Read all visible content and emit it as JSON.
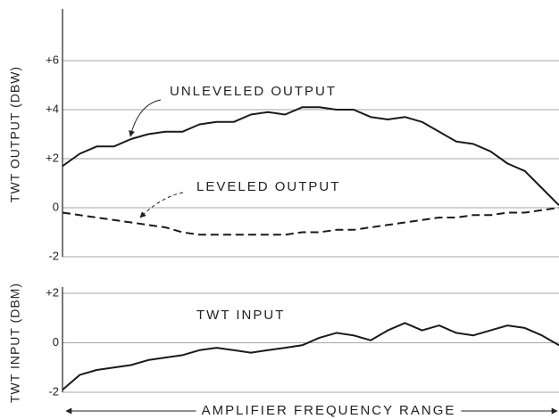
{
  "chart_data": [
    {
      "type": "line",
      "ylabel": "TWT OUTPUT (DBW)",
      "categories": [
        null,
        null,
        null,
        null,
        null,
        null,
        null,
        null,
        null,
        null,
        null,
        null,
        null,
        null,
        null,
        null,
        null,
        null,
        null,
        null,
        null,
        null,
        null,
        null,
        null,
        null,
        null,
        null,
        null,
        null
      ],
      "series": [
        {
          "name": "UNLEVELED OUTPUT",
          "color": "#1a1a1a",
          "line_style": "solid",
          "values": [
            1.7,
            2.2,
            2.5,
            2.5,
            2.8,
            3.0,
            3.1,
            3.1,
            3.4,
            3.5,
            3.5,
            3.8,
            3.9,
            3.8,
            4.1,
            4.1,
            4.0,
            4.0,
            3.7,
            3.6,
            3.7,
            3.5,
            3.1,
            2.7,
            2.6,
            2.3,
            1.8,
            1.5,
            0.8,
            0.1
          ]
        },
        {
          "name": "LEVELED OUTPUT",
          "color": "#1a1a1a",
          "line_style": "dashed",
          "values": [
            -0.2,
            -0.3,
            -0.4,
            -0.5,
            -0.6,
            -0.7,
            -0.8,
            -1.0,
            -1.1,
            -1.1,
            -1.1,
            -1.1,
            -1.1,
            -1.1,
            -1.0,
            -1.0,
            -0.9,
            -0.9,
            -0.8,
            -0.7,
            -0.6,
            -0.5,
            -0.4,
            -0.4,
            -0.3,
            -0.3,
            -0.2,
            -0.2,
            -0.1,
            0.0
          ]
        }
      ],
      "ylim": [
        -2,
        8
      ],
      "yticks": [
        {
          "value": 6,
          "label": "+6"
        },
        {
          "value": 4,
          "label": "+4"
        },
        {
          "value": 2,
          "label": "+2"
        },
        0,
        -2
      ],
      "grid": true
    },
    {
      "type": "line",
      "ylabel": "TWT INPUT (DBM)",
      "xlabel": "AMPLIFIER FREQUENCY RANGE",
      "categories": [
        null,
        null,
        null,
        null,
        null,
        null,
        null,
        null,
        null,
        null,
        null,
        null,
        null,
        null,
        null,
        null,
        null,
        null,
        null,
        null,
        null,
        null,
        null,
        null,
        null,
        null,
        null,
        null,
        null,
        null
      ],
      "series": [
        {
          "name": "TWT INPUT",
          "color": "#1a1a1a",
          "line_style": "solid",
          "values": [
            -1.9,
            -1.3,
            -1.1,
            -1.0,
            -0.9,
            -0.7,
            -0.6,
            -0.5,
            -0.3,
            -0.2,
            -0.3,
            -0.4,
            -0.3,
            -0.2,
            -0.1,
            0.2,
            0.4,
            0.3,
            0.1,
            0.5,
            0.8,
            0.5,
            0.7,
            0.4,
            0.3,
            0.5,
            0.7,
            0.6,
            0.3,
            -0.1
          ]
        }
      ],
      "ylim": [
        -2,
        2
      ],
      "yticks": [
        {
          "value": 2,
          "label": "+2"
        },
        0,
        -2
      ],
      "grid": true
    }
  ]
}
